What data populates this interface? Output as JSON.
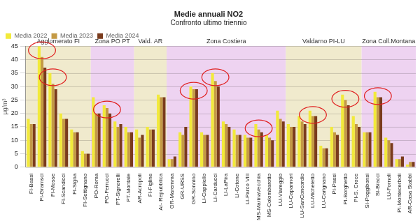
{
  "chart_data": {
    "type": "bar",
    "title": "Medie annuali NO2",
    "subtitle": "Confronto ultimo triennio",
    "y_label": "µg/m³",
    "categories": [
      "FI-Bassi",
      "FI-Gramsci",
      "FI-Mosse",
      "FI-Scandicci",
      "FI-Signa",
      "FI-Settignano",
      "PO-Roma",
      "PO-Ferrucci",
      "PT-Signorelli",
      "PT-Montale",
      "AR-Acropoli",
      "FI-Figline",
      "Ar- Repubblica",
      "GR-Maremma",
      "GR-URSS",
      "GR-Sonnino",
      "LI-Cappiello",
      "LI-Carducci",
      "LI-LaPira",
      "LI-Cotone",
      "LI-Parco VIII",
      "MS-MarinaVecchia",
      "MS-Colombarotto",
      "LU-Viareggio",
      "LU-Capannori",
      "LU-SanConcordio",
      "LU-Micheletto",
      "LU-Carignano",
      "PI-Passi",
      "PI-Borghetto",
      "PI-S. Croce",
      "SI-Poggibonsi",
      "SI-Bracci",
      "LU-Fornoli",
      "PI-Montecerboli",
      "AR-Casa Stabbi"
    ],
    "series": [
      {
        "name": "Media 2022",
        "color": "#f2ea3a",
        "values": [
          18,
          45,
          35,
          20,
          14,
          6,
          26,
          23,
          17,
          15,
          14,
          15,
          27,
          3,
          13,
          30,
          13,
          35,
          17,
          14,
          12,
          16,
          12,
          21,
          16,
          19,
          21,
          8,
          15,
          27,
          19,
          13,
          28,
          11,
          3,
          1
        ]
      },
      {
        "name": "Media 2023",
        "color": "#c49a45",
        "values": [
          16,
          41,
          31,
          18,
          13,
          5,
          20,
          22,
          15,
          13,
          11,
          14,
          26,
          3,
          12,
          29,
          12,
          32,
          16,
          12,
          11,
          14,
          11,
          18,
          15,
          17,
          19,
          7,
          13,
          25,
          16,
          13,
          26,
          10,
          3,
          2
        ]
      },
      {
        "name": "Media 2024",
        "color": "#7a3b1c",
        "values": [
          16,
          37,
          29,
          18,
          13,
          5,
          20,
          20,
          16,
          13,
          12,
          14,
          26,
          4,
          15,
          29,
          12,
          30,
          15,
          12,
          11,
          13,
          10,
          17,
          15,
          16,
          19,
          7,
          12,
          23,
          15,
          13,
          26,
          9,
          4,
          2
        ]
      }
    ],
    "zones": [
      {
        "label": "Agglomerato FI",
        "from": "FI-Bassi",
        "to": "FI-Settignano"
      },
      {
        "label": "Zona PO PT",
        "from": "PO-Roma",
        "to": "PT-Montale"
      },
      {
        "label": "Vald. AR",
        "from": "AR-Acropoli",
        "to": "Ar- Repubblica"
      },
      {
        "label": "Zona Costiera",
        "from": "GR-Maremma",
        "to": "LU-Viareggio"
      },
      {
        "label": "Valdarno PI-LU",
        "from": "LU-Capannori",
        "to": "PI-S. Croce"
      },
      {
        "label": "Zona Coll.Montana",
        "from": "SI-Poggibonsi",
        "to": "AR-Casa Stabbi"
      }
    ],
    "highlighted": [
      "FI-Gramsci",
      "FI-Mosse",
      "PO-Ferrucci",
      "GR-Sonnino",
      "LI-Carducci",
      "MS-MarinaVecchia",
      "LU-Micheletto",
      "PI-Borghetto",
      "SI-Bracci"
    ],
    "ylim": [
      0,
      45
    ],
    "yticks": [
      0,
      5,
      10,
      15,
      20,
      25,
      30,
      35,
      40,
      45
    ],
    "grid": true,
    "legend": "top"
  }
}
